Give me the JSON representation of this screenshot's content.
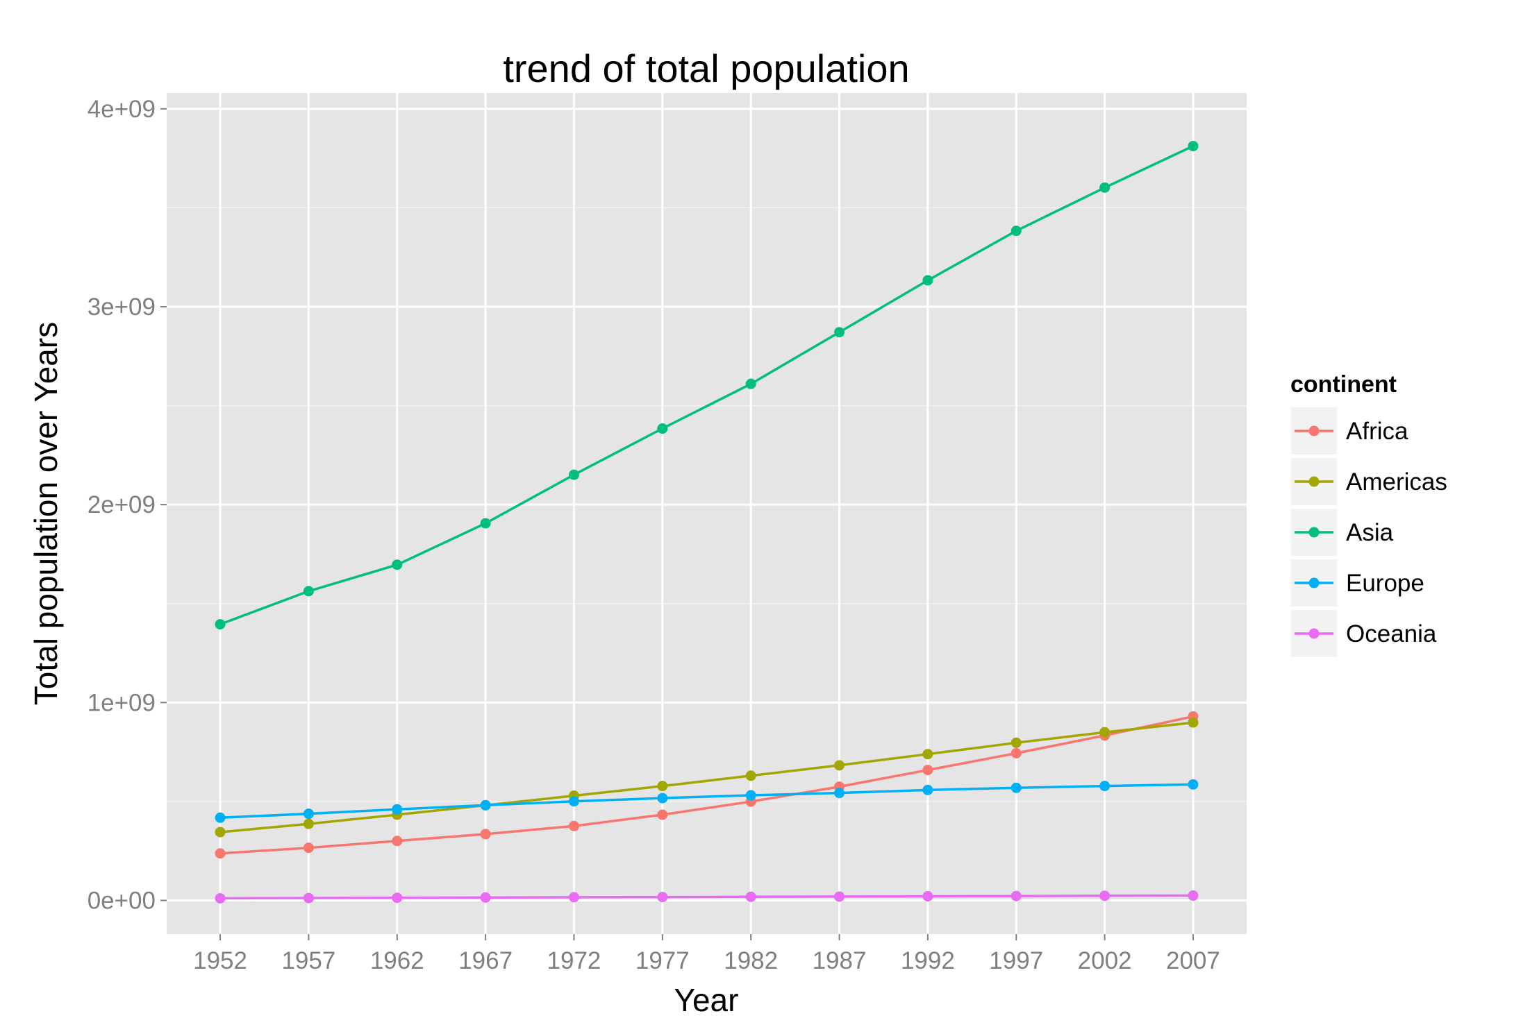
{
  "chart_data": {
    "type": "line",
    "title": "trend of total population",
    "xlabel": "Year",
    "ylabel": "Total population over Years",
    "x": [
      1952,
      1957,
      1962,
      1967,
      1972,
      1977,
      1982,
      1987,
      1992,
      1997,
      2002,
      2007
    ],
    "x_tick_labels": [
      "1952",
      "1957",
      "1962",
      "1967",
      "1972",
      "1977",
      "1982",
      "1987",
      "1992",
      "1997",
      "2002",
      "2007"
    ],
    "y_ticks": [
      0,
      1000000000,
      2000000000,
      3000000000,
      4000000000
    ],
    "y_tick_labels": [
      "0e+00",
      "1e+09",
      "2e+09",
      "3e+09",
      "4e+09"
    ],
    "ylim": [
      -170000000,
      4080000000
    ],
    "grid": true,
    "legend_title": "continent",
    "legend_position": "right",
    "series": [
      {
        "name": "Africa",
        "color": "#F8766D",
        "values": [
          237640501,
          265999157,
          300692765,
          335289489,
          376100040,
          433061021,
          499348587,
          574834110,
          659081517,
          743832984,
          833723916,
          929539692
        ]
      },
      {
        "name": "Americas",
        "color": "#A3A500",
        "values": [
          345152446,
          386953916,
          433270254,
          480746623,
          529384210,
          578067699,
          630290920,
          682753971,
          739274104,
          796900410,
          849772762,
          898871184
        ]
      },
      {
        "name": "Asia",
        "color": "#00BF7D",
        "values": [
          1395357351,
          1562780599,
          1696357182,
          1905662900,
          2150972248,
          2384513556,
          2610135582,
          2871220762,
          3133292191,
          3383285500,
          3601802203,
          3811953827
        ]
      },
      {
        "name": "Europe",
        "color": "#00B0F6",
        "values": [
          418120846,
          437890351,
          460355155,
          481178958,
          500635059,
          517164531,
          531266901,
          543094160,
          558142797,
          568944148,
          578223869,
          586098529
        ]
      },
      {
        "name": "Oceania",
        "color": "#E76BF3",
        "values": [
          10686006,
          11941976,
          13283518,
          14600414,
          16106100,
          17239000,
          18394850,
          19574415,
          20919651,
          22241430,
          23454829,
          24549947
        ]
      }
    ]
  }
}
